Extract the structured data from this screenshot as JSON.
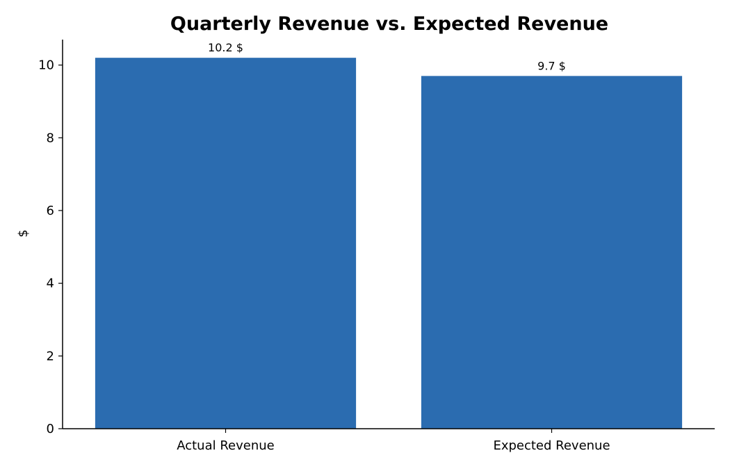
{
  "chart_data": {
    "type": "bar",
    "title": "Quarterly Revenue vs. Expected Revenue",
    "xlabel": "",
    "ylabel": "$",
    "categories": [
      "Actual Revenue",
      "Expected Revenue"
    ],
    "values": [
      10.2,
      9.7
    ],
    "data_labels": [
      "10.2 $",
      "9.7 $"
    ],
    "ylim": [
      0,
      10.7
    ],
    "yticks": [
      0,
      2,
      4,
      6,
      8,
      10
    ],
    "bar_color": "#2b6cb0",
    "grid": false,
    "legend": "none"
  }
}
